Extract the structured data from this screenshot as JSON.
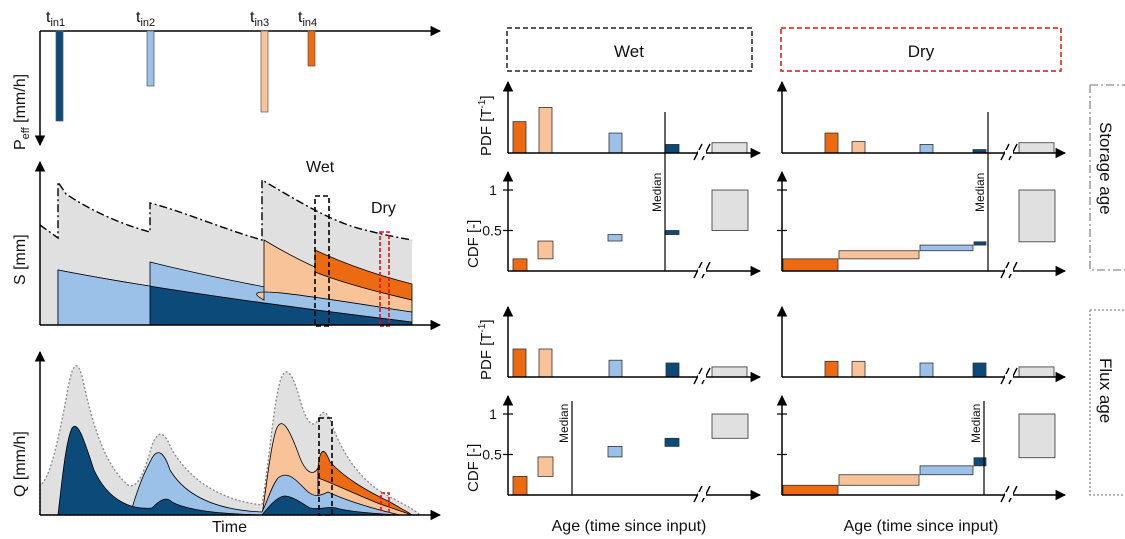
{
  "left": {
    "input_labels": [
      "t",
      "t",
      "t",
      "t"
    ],
    "input_subs": [
      "in1",
      "in2",
      "in3",
      "in4"
    ],
    "peff_label": "P",
    "peff_sub": "eff",
    "peff_unit": " [mm/h]",
    "s_label": "S [mm]",
    "q_label": "Q [mm/h]",
    "wet_label": "Wet",
    "dry_label": "Dry",
    "time_label": "Time"
  },
  "headers": {
    "wet": "Wet",
    "dry": "Dry"
  },
  "side_labels": {
    "storage": "Storage age",
    "flux": "Flux age"
  },
  "axis_labels": {
    "pdf_pre": "PDF [T",
    "pdf_sup": "-1",
    "pdf_post": "]",
    "cdf": "CDF [-]",
    "tick_one": "1",
    "tick_half": "0.5",
    "median": "Median",
    "age_wet": "Age (time since input)",
    "age_dry": "Age (time since input)"
  },
  "colors": {
    "dark_blue": "#0c4a7a",
    "light_blue": "#9bc1e8",
    "peach": "#f9c39a",
    "orange": "#ec6b12",
    "gray": "#e0e0e0",
    "wet_box": "#222222",
    "dry_box": "#e01010",
    "side_box": "#a0a0a0"
  },
  "pdf_data": {
    "storage_wet": [
      0.55,
      0.8,
      0.35,
      0.15,
      0.18
    ],
    "storage_dry": [
      0.35,
      0.2,
      0.15,
      0.06,
      0.18
    ],
    "flux_wet": [
      0.5,
      0.5,
      0.3,
      0.25,
      0.18
    ],
    "flux_dry": [
      0.28,
      0.28,
      0.25,
      0.25,
      0.18
    ]
  },
  "cdf_data": {
    "storage_wet": [
      0.15,
      0.37,
      0.45,
      0.5,
      1.0
    ],
    "storage_dry": [
      0.15,
      0.25,
      0.32,
      0.36,
      1.0
    ],
    "flux_wet": [
      0.23,
      0.47,
      0.6,
      0.7,
      1.0
    ],
    "flux_dry": [
      0.12,
      0.25,
      0.36,
      0.46,
      1.0
    ]
  }
}
